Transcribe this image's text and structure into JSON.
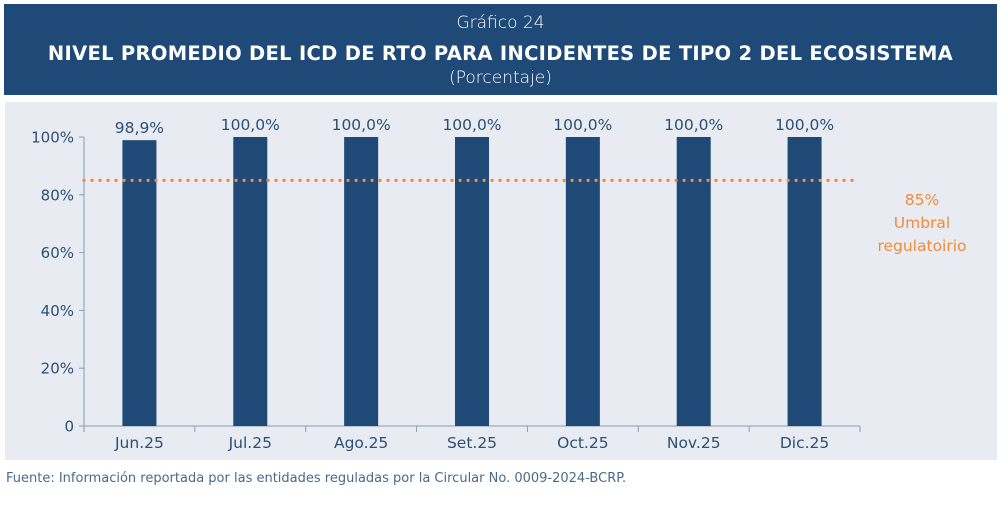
{
  "header": {
    "superscript": "Gráfico 24",
    "title": "NIVEL PROMEDIO DEL ICD DE RTO PARA INCIDENTES DE TIPO 2 DEL ECOSISTEMA",
    "subtitle": "(Porcentaje)"
  },
  "footer": {
    "source": "Fuente: Información reportada por las entidades reguladas por la Circular No. 0009-2024-BCRP."
  },
  "chart_data": {
    "type": "bar",
    "categories": [
      "Jun.25",
      "Jul.25",
      "Ago.25",
      "Set.25",
      "Oct.25",
      "Nov.25",
      "Dic.25"
    ],
    "values": [
      98.9,
      100.0,
      100.0,
      100.0,
      100.0,
      100.0,
      100.0
    ],
    "value_labels": [
      "98,9%",
      "100,0%",
      "100,0%",
      "100,0%",
      "100,0%",
      "100,0%",
      "100,0%"
    ],
    "ylim": [
      0,
      100
    ],
    "yticks": [
      0,
      20,
      40,
      60,
      80,
      100
    ],
    "ytick_labels": [
      "0",
      "20%",
      "40%",
      "60%",
      "80%",
      "100%"
    ],
    "grid": false,
    "threshold": {
      "value": 85,
      "label_lines": [
        "85%",
        "Umbral",
        "regulatoirio"
      ]
    },
    "colors": {
      "bar": "#1f4a77",
      "threshold": "#f08a3c",
      "axis_text": "#2c4f74",
      "axis_line": "#8a9bb0"
    }
  }
}
